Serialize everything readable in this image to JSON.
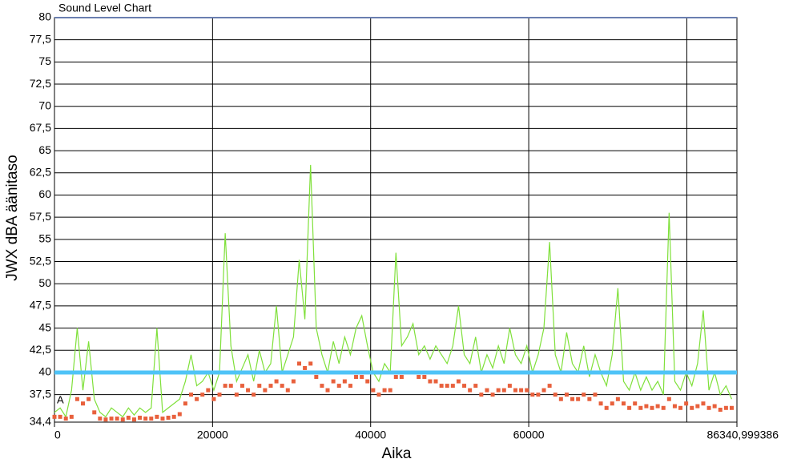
{
  "chart_data": {
    "type": "line",
    "title": "Sound Level Chart",
    "ylabel": "JWX dBA äänitaso",
    "xlabel": "Aika",
    "annotation": "A",
    "threshold": 40,
    "threshold_color": "#4fc3f7",
    "x": [
      0,
      720,
      1440,
      2160,
      2880,
      3600,
      4320,
      5040,
      5760,
      6480,
      7200,
      7920,
      8640,
      9360,
      10080,
      10800,
      11520,
      12240,
      12960,
      13680,
      14400,
      15120,
      15840,
      16560,
      17280,
      18000,
      18720,
      19440,
      20160,
      20880,
      21600,
      22320,
      23040,
      23760,
      24480,
      25200,
      25920,
      26640,
      27360,
      28080,
      28800,
      29520,
      30240,
      30960,
      31680,
      32400,
      33120,
      33840,
      34560,
      35280,
      36000,
      36720,
      37440,
      38160,
      38880,
      39600,
      40320,
      41040,
      41760,
      42480,
      43200,
      43920,
      44640,
      45360,
      46080,
      46800,
      47520,
      48240,
      48960,
      49680,
      50400,
      51120,
      51840,
      52560,
      53280,
      54000,
      54720,
      55440,
      56160,
      56880,
      57600,
      58320,
      59040,
      59760,
      60480,
      61200,
      61920,
      62640,
      63360,
      64080,
      64800,
      65520,
      66240,
      66960,
      67680,
      68400,
      69120,
      69840,
      70560,
      71280,
      72000,
      72720,
      73440,
      74160,
      74880,
      75600,
      76320,
      77040,
      77760,
      78480,
      79200,
      79920,
      80640,
      81360,
      82080,
      82800,
      83520,
      84240,
      84960,
      85680
    ],
    "series": [
      {
        "color": "#7fe03a",
        "marker": "none",
        "values": [
          35.5,
          36,
          35,
          38,
          45,
          38,
          43.5,
          37,
          35.5,
          35,
          36,
          35.5,
          35,
          36,
          35.2,
          36,
          35.5,
          36,
          45,
          35.5,
          36,
          36.5,
          37,
          39,
          42,
          38.5,
          39,
          40,
          38,
          40,
          55.7,
          43,
          39,
          40.5,
          42,
          39,
          42.5,
          40,
          41,
          47.5,
          40,
          42,
          44,
          52.7,
          46,
          63.4,
          45,
          42,
          40,
          43.5,
          41,
          44,
          42,
          45,
          46.4,
          43,
          40,
          39,
          41,
          40,
          53.5,
          43,
          44,
          45.5,
          42,
          43,
          41.5,
          43,
          42,
          41,
          43,
          47.5,
          42,
          41,
          44,
          40,
          42,
          40.5,
          43,
          41,
          45,
          42,
          41,
          43,
          40,
          42,
          45,
          54.7,
          42,
          40,
          44.5,
          41,
          40,
          43,
          39.5,
          42,
          40,
          38.5,
          42,
          49.5,
          39,
          38,
          40,
          38,
          39.5,
          38,
          39,
          37.5,
          58,
          39,
          38,
          40,
          38.5,
          41,
          47,
          38,
          40,
          37.5,
          38.5,
          37
        ]
      },
      {
        "color": "#e8603c",
        "marker": "square",
        "values": [
          35,
          35,
          34.8,
          35,
          37,
          36.5,
          37,
          35.5,
          34.8,
          34.7,
          34.8,
          34.8,
          34.7,
          34.9,
          34.7,
          34.9,
          34.8,
          34.8,
          35,
          34.8,
          34.9,
          35,
          35.3,
          36.5,
          37.5,
          37,
          37.5,
          38,
          37,
          37.5,
          38.5,
          38.5,
          37.5,
          38.5,
          38,
          37.5,
          38.5,
          38,
          38.5,
          39,
          38.5,
          38,
          39,
          41,
          40.5,
          41,
          39.5,
          38.5,
          38,
          39,
          38.5,
          39,
          38.5,
          39.5,
          39.5,
          39,
          38,
          37.5,
          38,
          38,
          39.5,
          39.5,
          40,
          40,
          39.5,
          39.5,
          39,
          39,
          38.5,
          38.5,
          38.5,
          39,
          38.5,
          38,
          38.5,
          37.5,
          38,
          37.5,
          38,
          38,
          38.5,
          38,
          38,
          38,
          37.5,
          37.5,
          38,
          38.5,
          37.5,
          37,
          37.5,
          37,
          37,
          37.5,
          37,
          37.5,
          36.5,
          36,
          36.5,
          37,
          36.5,
          36,
          36.5,
          36,
          36.2,
          36,
          36.2,
          36,
          37,
          36.2,
          36,
          36.5,
          36,
          36.2,
          36.5,
          36,
          36.2,
          35.8,
          36,
          36
        ]
      }
    ],
    "xlim": [
      0,
      86340.999386
    ],
    "xticks": [
      0,
      20000,
      40000,
      60000,
      {
        "value": 86340.999386,
        "label": "86340,999386"
      }
    ],
    "xgrid": [
      0,
      20000,
      40000,
      60000,
      80000
    ],
    "ylim": [
      34.4,
      80
    ],
    "yticks": [
      {
        "value": 34.4,
        "label": "34,4"
      },
      {
        "value": 37.5,
        "label": "37,5"
      },
      40,
      {
        "value": 42.5,
        "label": "42,5"
      },
      45,
      {
        "value": 47.5,
        "label": "47,5"
      },
      50,
      {
        "value": 52.5,
        "label": "52,5"
      },
      55,
      {
        "value": 57.5,
        "label": "57,5"
      },
      60,
      {
        "value": 62.5,
        "label": "62,5"
      },
      65,
      {
        "value": 67.5,
        "label": "67,5"
      },
      70,
      {
        "value": 72.5,
        "label": "72,5"
      },
      75,
      {
        "value": 77.5,
        "label": "77,5"
      },
      80
    ],
    "grid": true
  }
}
